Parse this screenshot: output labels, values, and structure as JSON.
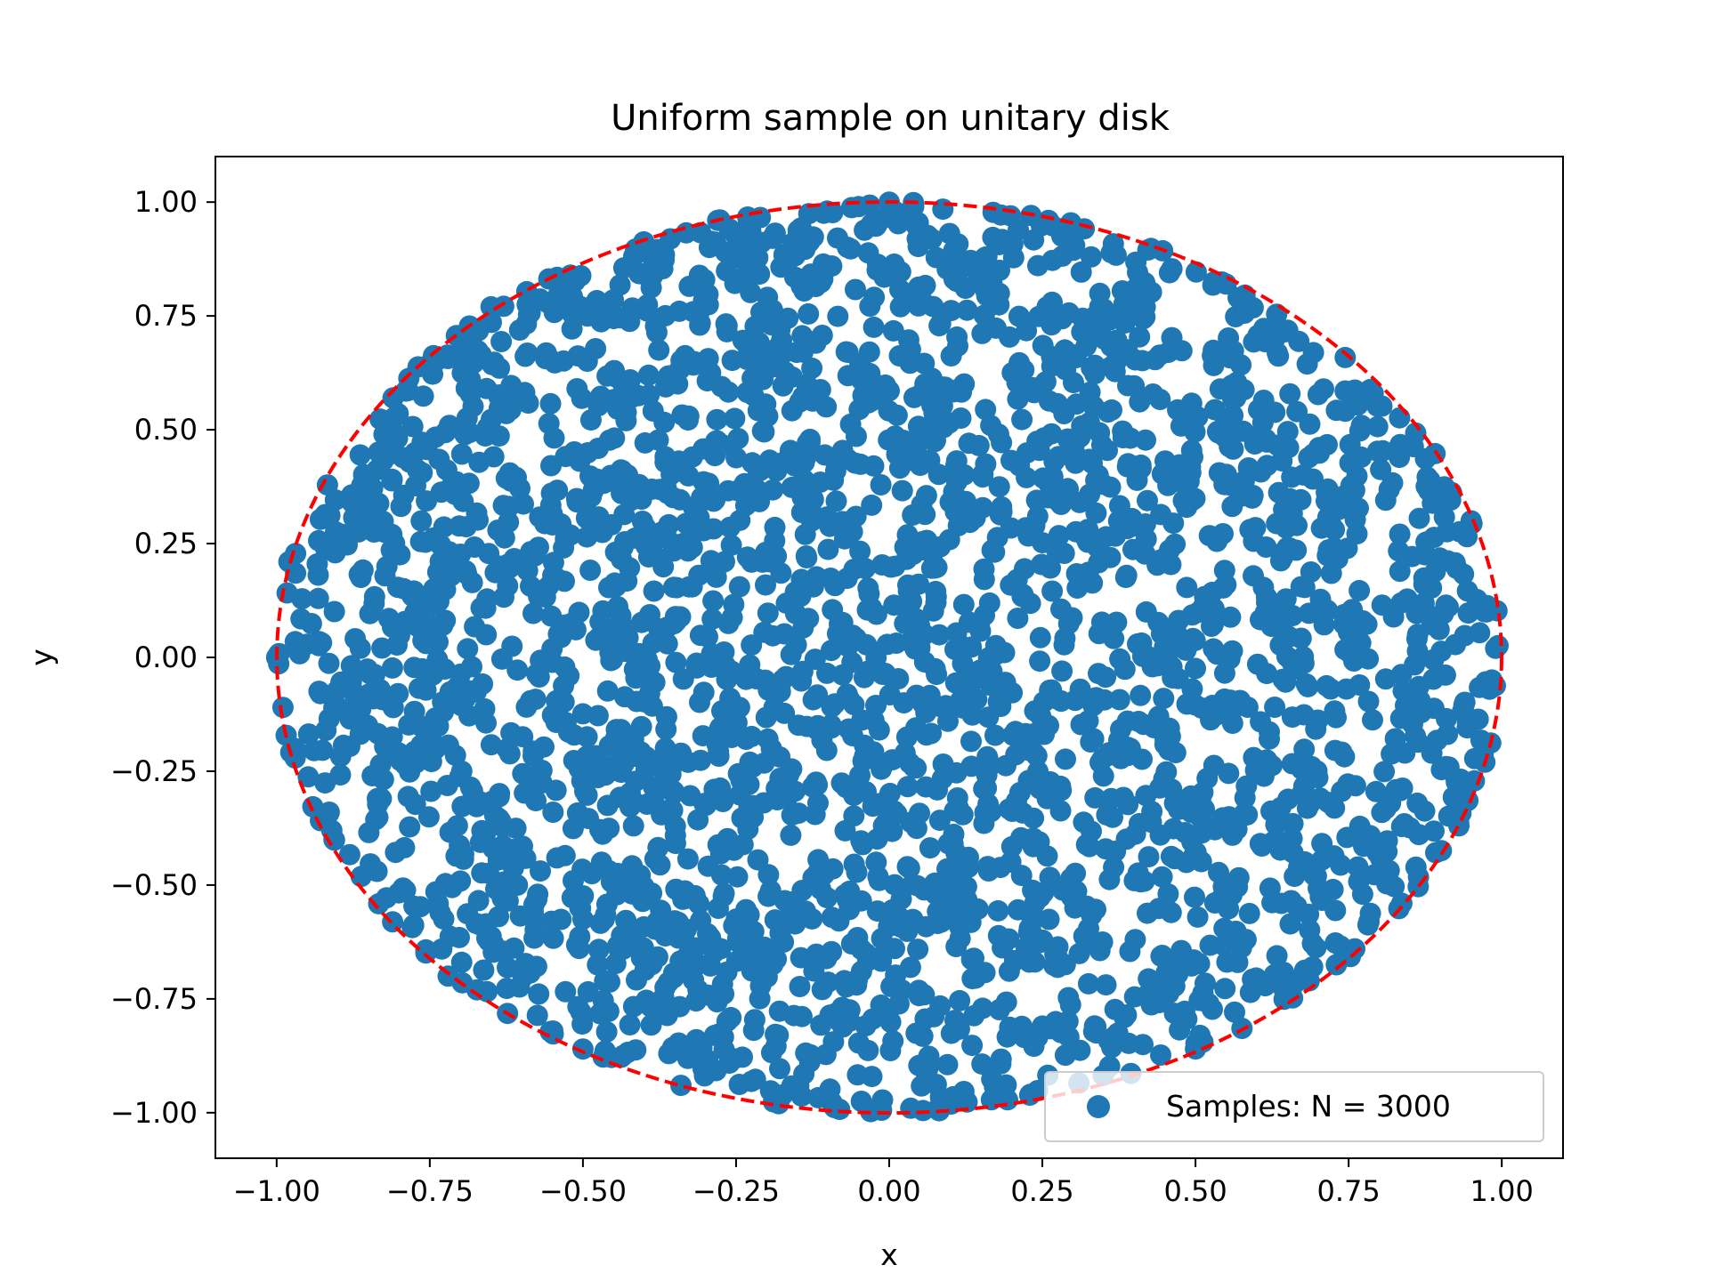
{
  "chart_data": {
    "type": "scatter",
    "title": "Uniform sample on unitary disk",
    "xlabel": "x",
    "ylabel": "y",
    "xlim": [
      -1.1,
      1.1
    ],
    "ylim": [
      -1.1,
      1.1
    ],
    "xticks": [
      -1.0,
      -0.75,
      -0.5,
      -0.25,
      0.0,
      0.25,
      0.5,
      0.75,
      1.0
    ],
    "xtick_labels": [
      "−1.00",
      "−0.75",
      "−0.50",
      "−0.25",
      "0.00",
      "0.25",
      "0.50",
      "0.75",
      "1.00"
    ],
    "yticks": [
      -1.0,
      -0.75,
      -0.5,
      -0.25,
      0.0,
      0.25,
      0.5,
      0.75,
      1.0
    ],
    "ytick_labels": [
      "−1.00",
      "−0.75",
      "−0.50",
      "−0.25",
      "0.00",
      "0.25",
      "0.50",
      "0.75",
      "1.00"
    ],
    "grid": false,
    "legend": {
      "position": "lower-right",
      "entries": [
        "Samples: N = 3000"
      ]
    },
    "series": [
      {
        "name": "Samples: N = 3000",
        "color": "#1f77b4",
        "marker": "circle",
        "n_points": 3000,
        "distribution": "uniform on unit disk",
        "points": [
          [
            0.0,
            1.0
          ],
          [
            0.04,
            0.99
          ],
          [
            -0.05,
            0.99
          ],
          [
            0.99,
            0.02
          ],
          [
            -1.0,
            0.0
          ],
          [
            0.98,
            -0.07
          ],
          [
            0.08,
            -0.99
          ],
          [
            0.23,
            -0.96
          ],
          [
            -0.34,
            -0.94
          ],
          [
            0.95,
            0.3
          ],
          [
            0.79,
            0.58
          ],
          [
            0.26,
            0.96
          ],
          [
            -0.28,
            0.96
          ],
          [
            -0.65,
            0.77
          ],
          [
            -0.81,
            0.57
          ],
          [
            -0.98,
            0.21
          ],
          [
            -0.97,
            -0.2
          ],
          [
            -0.91,
            -0.38
          ],
          [
            -0.72,
            -0.7
          ],
          [
            -0.5,
            -0.86
          ],
          [
            0.5,
            -0.86
          ],
          [
            0.76,
            -0.64
          ],
          [
            0.93,
            -0.37
          ],
          [
            0.55,
            0.82
          ]
        ]
      },
      {
        "name": "",
        "type": "line",
        "color": "#ff0000",
        "style": "dashed",
        "shape": "unit circle"
      }
    ]
  }
}
